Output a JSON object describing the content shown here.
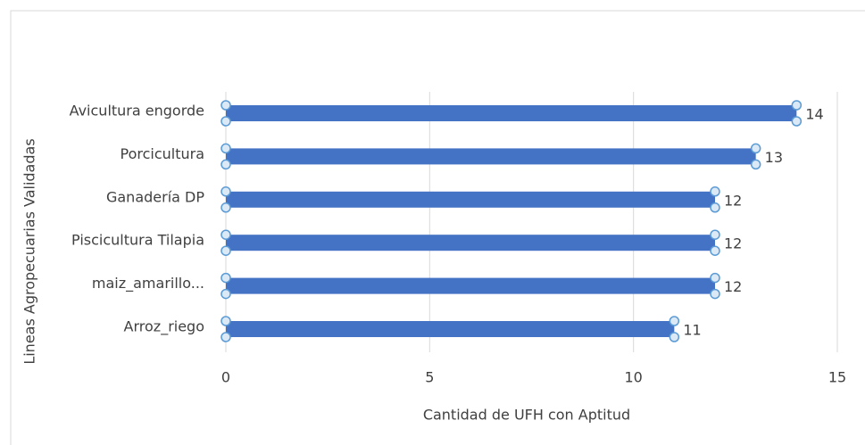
{
  "chart_data": {
    "type": "bar",
    "orientation": "horizontal",
    "x_label": "Cantidad de UFH con Aptitud",
    "y_label": "Lineas Agropecuarias Validadas",
    "categories": [
      "Avicultura engorde",
      "Porcicultura",
      "Ganadería DP",
      "Piscicultura Tilapia",
      "maiz_amarillo...",
      "Arroz_riego"
    ],
    "values": [
      14,
      13,
      12,
      12,
      12,
      11
    ],
    "color": "#4472c4",
    "xlim": [
      0,
      15
    ],
    "xticks": [
      0,
      5,
      10,
      15
    ],
    "grid": true
  }
}
